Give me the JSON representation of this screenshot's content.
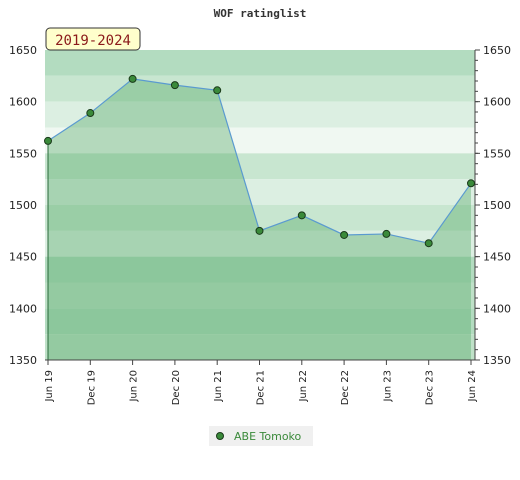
{
  "chart_data": {
    "type": "area",
    "title": "WOF ratinglist",
    "badge": "2019-2024",
    "x_labels": [
      "Jun 19",
      "Dec 19",
      "Jun 20",
      "Dec 20",
      "Jun 21",
      "Dec 21",
      "Jun 22",
      "Dec 22",
      "Jun 23",
      "Dec 23",
      "Jun 24"
    ],
    "series": [
      {
        "name": "ABE Tomoko",
        "color": "#3a8a3a",
        "values": [
          1562,
          1589,
          1622,
          1616,
          1611,
          1475,
          1490,
          1471,
          1472,
          1463,
          1521
        ]
      }
    ],
    "y_ticks": [
      1350,
      1400,
      1450,
      1500,
      1550,
      1600,
      1650
    ],
    "ylim": [
      1350,
      1650
    ],
    "grid": true,
    "legend": "bottom-center"
  }
}
